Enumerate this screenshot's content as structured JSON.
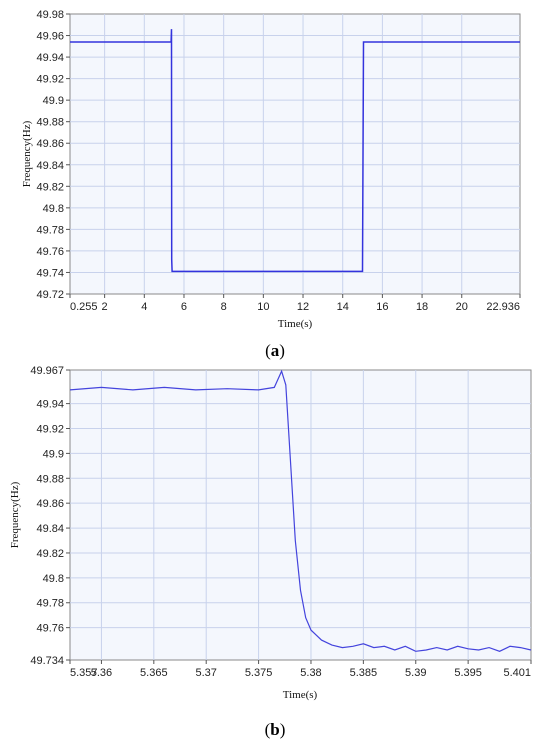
{
  "chart_data": [
    {
      "type": "line",
      "caption": "a",
      "xlabel": "Time(s)",
      "ylabel": "Frequency(Hz)",
      "xlim": [
        0.255,
        22.936
      ],
      "ylim": [
        49.72,
        49.98
      ],
      "grid": true,
      "colors": {
        "line": "#3333dd",
        "plot_bg": "#f4f7fd",
        "grid": "#c8d2ec"
      },
      "x_ticks": [
        0.255,
        2,
        4,
        6,
        8,
        10,
        12,
        14,
        16,
        18,
        20,
        22.936
      ],
      "x_tick_labels": [
        "0.255",
        "2",
        "4",
        "6",
        "8",
        "10",
        "12",
        "14",
        "16",
        "18",
        "20",
        "22.936"
      ],
      "y_ticks": [
        49.72,
        49.74,
        49.76,
        49.78,
        49.8,
        49.82,
        49.84,
        49.86,
        49.88,
        49.9,
        49.92,
        49.94,
        49.96,
        49.98
      ],
      "y_tick_labels": [
        "49.72",
        "49.74",
        "49.76",
        "49.78",
        "49.8",
        "49.82",
        "49.84",
        "49.86",
        "49.88",
        "49.9",
        "49.92",
        "49.94",
        "49.96",
        "49.98"
      ],
      "series": [
        {
          "x": [
            0.255,
            5.35,
            5.37,
            5.38,
            5.4,
            15.0,
            15.05,
            22.936
          ],
          "y": [
            49.954,
            49.954,
            49.966,
            49.752,
            49.741,
            49.741,
            49.954,
            49.954
          ]
        }
      ]
    },
    {
      "type": "line",
      "caption": "b",
      "xlabel": "Time(s)",
      "ylabel": "Frequency(Hz)",
      "xlim": [
        5.357,
        5.401
      ],
      "ylim": [
        49.734,
        49.967
      ],
      "grid": true,
      "colors": {
        "line": "#4444dd",
        "plot_bg": "#f4f7fd",
        "grid": "#c8d2ec"
      },
      "x_ticks": [
        5.357,
        5.36,
        5.365,
        5.37,
        5.375,
        5.38,
        5.385,
        5.39,
        5.395,
        5.401
      ],
      "x_tick_labels": [
        "5.357",
        "5.36",
        "5.365",
        "5.37",
        "5.375",
        "5.38",
        "5.385",
        "5.39",
        "5.395",
        "5.401"
      ],
      "y_ticks": [
        49.734,
        49.76,
        49.78,
        49.8,
        49.82,
        49.84,
        49.86,
        49.88,
        49.9,
        49.92,
        49.94,
        49.967
      ],
      "y_tick_labels": [
        "49.734",
        "49.76",
        "49.78",
        "49.8",
        "49.82",
        "49.84",
        "49.86",
        "49.88",
        "49.9",
        "49.92",
        "49.94",
        "49.967"
      ],
      "series": [
        {
          "x": [
            5.357,
            5.36,
            5.363,
            5.366,
            5.369,
            5.372,
            5.375,
            5.3765,
            5.3772,
            5.3776,
            5.378,
            5.3785,
            5.379,
            5.3795,
            5.38,
            5.381,
            5.382,
            5.383,
            5.384,
            5.385,
            5.386,
            5.387,
            5.388,
            5.389,
            5.39,
            5.391,
            5.392,
            5.393,
            5.394,
            5.395,
            5.396,
            5.397,
            5.398,
            5.399,
            5.4,
            5.401
          ],
          "y": [
            49.951,
            49.953,
            49.951,
            49.953,
            49.951,
            49.952,
            49.951,
            49.953,
            49.966,
            49.955,
            49.9,
            49.83,
            49.79,
            49.768,
            49.758,
            49.75,
            49.746,
            49.744,
            49.745,
            49.747,
            49.744,
            49.745,
            49.742,
            49.745,
            49.741,
            49.742,
            49.744,
            49.742,
            49.745,
            49.743,
            49.742,
            49.744,
            49.741,
            49.745,
            49.744,
            49.742
          ]
        }
      ]
    }
  ]
}
